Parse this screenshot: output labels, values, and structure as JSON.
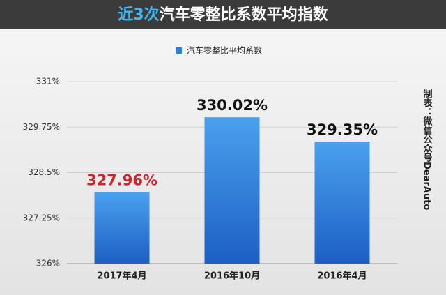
{
  "chart_data": {
    "type": "bar",
    "title_highlight": "近3次",
    "title_rest": "汽车零整比系数平均指数",
    "source_note": "制表：微信公众号DearAuto",
    "categories": [
      "2017年4月",
      "2016年10月",
      "2016年4月"
    ],
    "series": [
      {
        "name": "汽车零整比平均系数",
        "color": "#2f7fd8",
        "values": [
          327.96,
          330.02,
          329.35
        ],
        "value_labels": [
          "327.96%",
          "330.02%",
          "329.35%"
        ],
        "value_label_colors": [
          "#c8262c",
          "#111111",
          "#111111"
        ]
      }
    ],
    "ylim": [
      326,
      331
    ],
    "yticks": [
      {
        "value": 326,
        "label": "326%"
      },
      {
        "value": 327.25,
        "label": "327.25%"
      },
      {
        "value": 328.5,
        "label": "328.5%"
      },
      {
        "value": 329.75,
        "label": "329.75%"
      },
      {
        "value": 331,
        "label": "331%"
      }
    ],
    "grid": true,
    "legend": "top"
  }
}
